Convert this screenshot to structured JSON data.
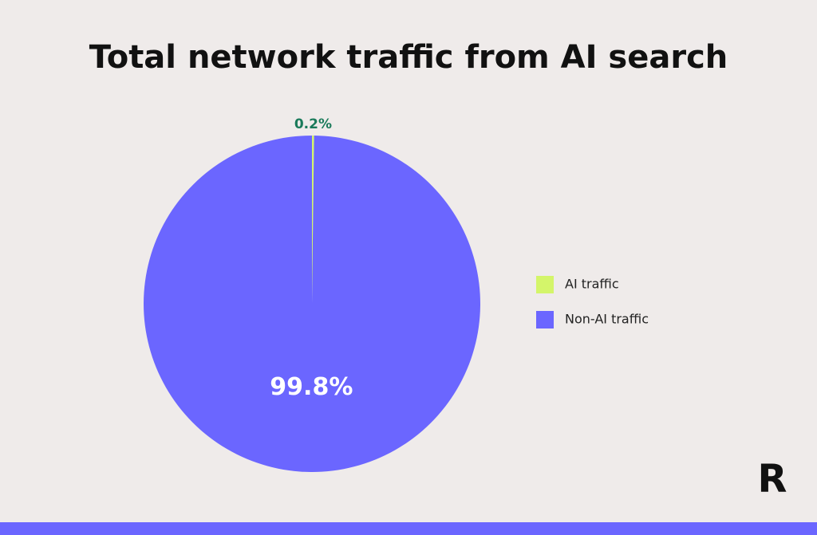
{
  "chart_data": {
    "type": "pie",
    "title": "Total network traffic from AI search",
    "categories": [
      "AI traffic",
      "Non-AI traffic"
    ],
    "values": [
      0.2,
      99.8
    ],
    "value_labels": [
      "0.2%",
      "99.8%"
    ],
    "colors": [
      "#d4f56a",
      "#6b66ff"
    ],
    "legend": "right"
  },
  "logo": "R"
}
